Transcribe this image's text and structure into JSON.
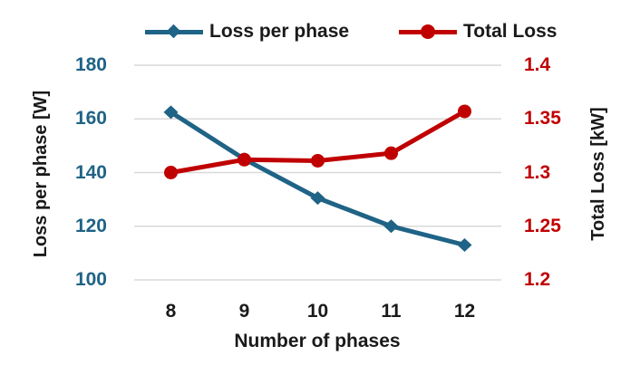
{
  "colors": {
    "series_blue": "#1F6386",
    "series_red": "#C00000",
    "grid": "#D9D9D9",
    "text": "#1a1a1a",
    "background": "#FFFFFF"
  },
  "legend": {
    "items": [
      {
        "label": "Loss per phase",
        "color": "#1F6386",
        "marker": "diamond"
      },
      {
        "label": "Total Loss",
        "color": "#C00000",
        "marker": "circle"
      }
    ]
  },
  "chart_data": {
    "type": "line",
    "title": "",
    "xlabel": "Number of phases",
    "categories": [
      8,
      9,
      10,
      11,
      12
    ],
    "axes": {
      "left": {
        "label": "Loss per phase [W]",
        "tick_labels": [
          "180",
          "160",
          "140",
          "120",
          "100"
        ],
        "range": [
          100,
          180
        ],
        "color": "#1F6386"
      },
      "right": {
        "label": "Total Loss [kW]",
        "tick_labels": [
          "1.4",
          "1.35",
          "1.3",
          "1.25",
          "1.2"
        ],
        "range": [
          1.2,
          1.4
        ],
        "color": "#C00000"
      }
    },
    "series": [
      {
        "name": "Loss per phase",
        "axis": "left",
        "color": "#1F6386",
        "marker": "diamond",
        "values": [
          162.5,
          145,
          130.5,
          120,
          113
        ]
      },
      {
        "name": "Total Loss",
        "axis": "right",
        "color": "#C00000",
        "marker": "circle",
        "values": [
          1.3,
          1.312,
          1.311,
          1.318,
          1.357
        ]
      }
    ],
    "grid": true,
    "legend_position": "top"
  }
}
